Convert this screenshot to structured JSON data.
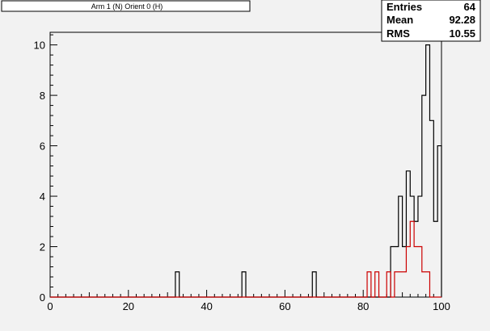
{
  "title": "Arm 1 (N) Orient 0 (H)",
  "stats": {
    "entries_label": "Entries",
    "entries_value": "64",
    "mean_label": "Mean",
    "mean_value": "92.28",
    "rms_label": "RMS",
    "rms_value": "10.55"
  },
  "colors": {
    "background": "#f2f2f2",
    "series_black": "#000000",
    "series_red": "#cc0000"
  },
  "chart_data": {
    "type": "histogram",
    "title": "Arm 1 (N) Orient 0 (H)",
    "xlabel": "",
    "ylabel": "",
    "xlim": [
      0,
      100
    ],
    "ylim": [
      0,
      10.5
    ],
    "x_ticks": [
      0,
      20,
      40,
      60,
      80,
      100
    ],
    "y_ticks": [
      0,
      2,
      4,
      6,
      8,
      10
    ],
    "bin_width": 1,
    "series": [
      {
        "color": "#000000",
        "bins": [
          {
            "x": 32,
            "y": 1
          },
          {
            "x": 49,
            "y": 1
          },
          {
            "x": 67,
            "y": 1
          },
          {
            "x": 87,
            "y": 2
          },
          {
            "x": 88,
            "y": 2
          },
          {
            "x": 89,
            "y": 4
          },
          {
            "x": 90,
            "y": 2
          },
          {
            "x": 91,
            "y": 5
          },
          {
            "x": 92,
            "y": 4
          },
          {
            "x": 93,
            "y": 3
          },
          {
            "x": 94,
            "y": 4
          },
          {
            "x": 95,
            "y": 8
          },
          {
            "x": 96,
            "y": 10
          },
          {
            "x": 97,
            "y": 7
          },
          {
            "x": 98,
            "y": 3
          },
          {
            "x": 99,
            "y": 6
          }
        ]
      },
      {
        "color": "#cc0000",
        "bins": [
          {
            "x": 81,
            "y": 1
          },
          {
            "x": 83,
            "y": 1
          },
          {
            "x": 86,
            "y": 1
          },
          {
            "x": 88,
            "y": 1
          },
          {
            "x": 89,
            "y": 1
          },
          {
            "x": 90,
            "y": 1
          },
          {
            "x": 91,
            "y": 2
          },
          {
            "x": 92,
            "y": 3
          },
          {
            "x": 93,
            "y": 2
          },
          {
            "x": 94,
            "y": 2
          },
          {
            "x": 95,
            "y": 1
          },
          {
            "x": 96,
            "y": 1
          }
        ]
      }
    ]
  }
}
